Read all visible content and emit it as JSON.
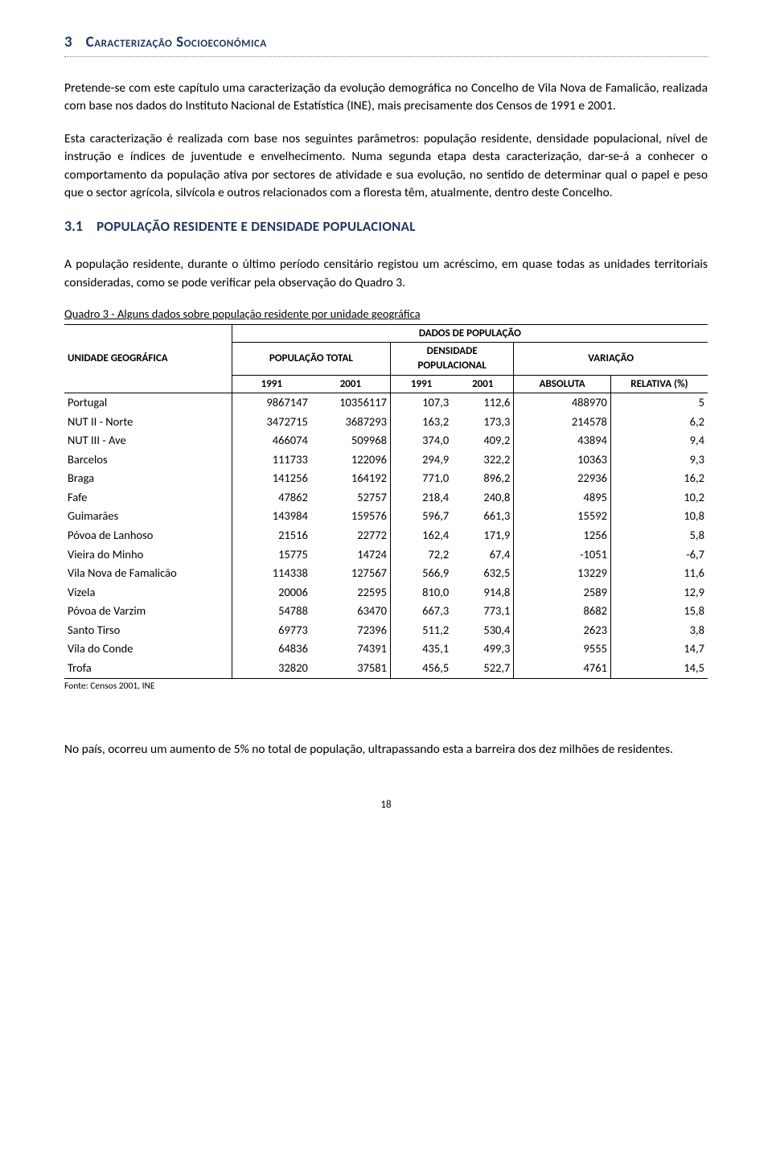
{
  "section": {
    "number": "3",
    "title": "Caracterização Socioeconómica"
  },
  "paragraphs": {
    "p1": "Pretende-se com este capítulo uma caracterização da evolução demográfica no Concelho de Vila Nova de Famalicão, realizada com base nos dados do Instituto Nacional de Estatística (INE), mais precisamente dos Censos de 1991 e 2001.",
    "p2": "Esta caracterização é realizada com base nos seguintes parâmetros: população residente, densidade populacional, nível de instrução e índices de juventude e envelhecimento. Numa segunda etapa desta caracterização, dar-se-á a conhecer o comportamento da população ativa por sectores de atividade e sua evolução, no sentido de determinar qual o papel e peso que o sector agrícola, silvícola e outros relacionados com a floresta têm, atualmente, dentro deste Concelho.",
    "p3": "A população residente, durante o último período censitário registou um acréscimo, em quase todas as unidades territoriais consideradas, como se pode verificar pela observação do Quadro 3.",
    "p4": "No país, ocorreu um aumento de 5% no total de população, ultrapassando esta a barreira dos dez milhões de residentes."
  },
  "subsection": {
    "number": "3.1",
    "title": "POPULAÇÃO RESIDENTE E DENSIDADE POPULACIONAL"
  },
  "table": {
    "caption": "Quadro 3 - Alguns dados sobre população residente por unidade geográfica",
    "header": {
      "unit": "UNIDADE GEOGRÁFICA",
      "dataPop": "DADOS DE POPULAÇÃO",
      "popTotal": "POPULAÇÃO TOTAL",
      "density": "DENSIDADE POPULACIONAL",
      "variation": "VARIAÇÃO",
      "y1991": "1991",
      "y2001": "2001",
      "abs": "ABSOLUTA",
      "rel": "RELATIVA (%)"
    },
    "rows": [
      {
        "label": "Portugal",
        "pt91": "9867147",
        "pt01": "10356117",
        "d91": "107,3",
        "d01": "112,6",
        "abs": "488970",
        "rel": "5"
      },
      {
        "label": "NUT II - Norte",
        "pt91": "3472715",
        "pt01": "3687293",
        "d91": "163,2",
        "d01": "173,3",
        "abs": "214578",
        "rel": "6,2"
      },
      {
        "label": "NUT III - Ave",
        "pt91": "466074",
        "pt01": "509968",
        "d91": "374,0",
        "d01": "409,2",
        "abs": "43894",
        "rel": "9,4"
      },
      {
        "label": "Barcelos",
        "pt91": "111733",
        "pt01": "122096",
        "d91": "294,9",
        "d01": "322,2",
        "abs": "10363",
        "rel": "9,3"
      },
      {
        "label": "Braga",
        "pt91": "141256",
        "pt01": "164192",
        "d91": "771,0",
        "d01": "896,2",
        "abs": "22936",
        "rel": "16,2"
      },
      {
        "label": "Fafe",
        "pt91": "47862",
        "pt01": "52757",
        "d91": "218,4",
        "d01": "240,8",
        "abs": "4895",
        "rel": "10,2"
      },
      {
        "label": "Guimarães",
        "pt91": "143984",
        "pt01": "159576",
        "d91": "596,7",
        "d01": "661,3",
        "abs": "15592",
        "rel": "10,8"
      },
      {
        "label": "Póvoa de Lanhoso",
        "pt91": "21516",
        "pt01": "22772",
        "d91": "162,4",
        "d01": "171,9",
        "abs": "1256",
        "rel": "5,8"
      },
      {
        "label": "Vieira do Minho",
        "pt91": "15775",
        "pt01": "14724",
        "d91": "72,2",
        "d01": "67,4",
        "abs": "-1051",
        "rel": "-6,7"
      },
      {
        "label": "Vila Nova de Famalicão",
        "pt91": "114338",
        "pt01": "127567",
        "d91": "566,9",
        "d01": "632,5",
        "abs": "13229",
        "rel": "11,6"
      },
      {
        "label": "Vizela",
        "pt91": "20006",
        "pt01": "22595",
        "d91": "810,0",
        "d01": "914,8",
        "abs": "2589",
        "rel": "12,9"
      },
      {
        "label": "Póvoa de Varzim",
        "pt91": "54788",
        "pt01": "63470",
        "d91": "667,3",
        "d01": "773,1",
        "abs": "8682",
        "rel": "15,8"
      },
      {
        "label": "Santo Tirso",
        "pt91": "69773",
        "pt01": "72396",
        "d91": "511,2",
        "d01": "530,4",
        "abs": "2623",
        "rel": "3,8"
      },
      {
        "label": "Vila do Conde",
        "pt91": "64836",
        "pt01": "74391",
        "d91": "435,1",
        "d01": "499,3",
        "abs": "9555",
        "rel": "14,7"
      },
      {
        "label": "Trofa",
        "pt91": "32820",
        "pt01": "37581",
        "d91": "456,5",
        "d01": "522,7",
        "abs": "4761",
        "rel": "14,5"
      }
    ],
    "source": "Fonte: Censos 2001, INE",
    "colWidths": [
      "190px",
      "90px",
      "90px",
      "70px",
      "70px",
      "110px",
      "110px"
    ]
  },
  "pageNumber": "18",
  "colors": {
    "heading": "#1f3864",
    "text": "#000000",
    "dotted": "#7f7f7f",
    "background": "#ffffff"
  },
  "fontSizes": {
    "body": 15.5,
    "heading": 19,
    "subheading": 17,
    "tableHeader": 13,
    "tableBody": 14.5,
    "source": 11.5,
    "pageNum": 13
  }
}
